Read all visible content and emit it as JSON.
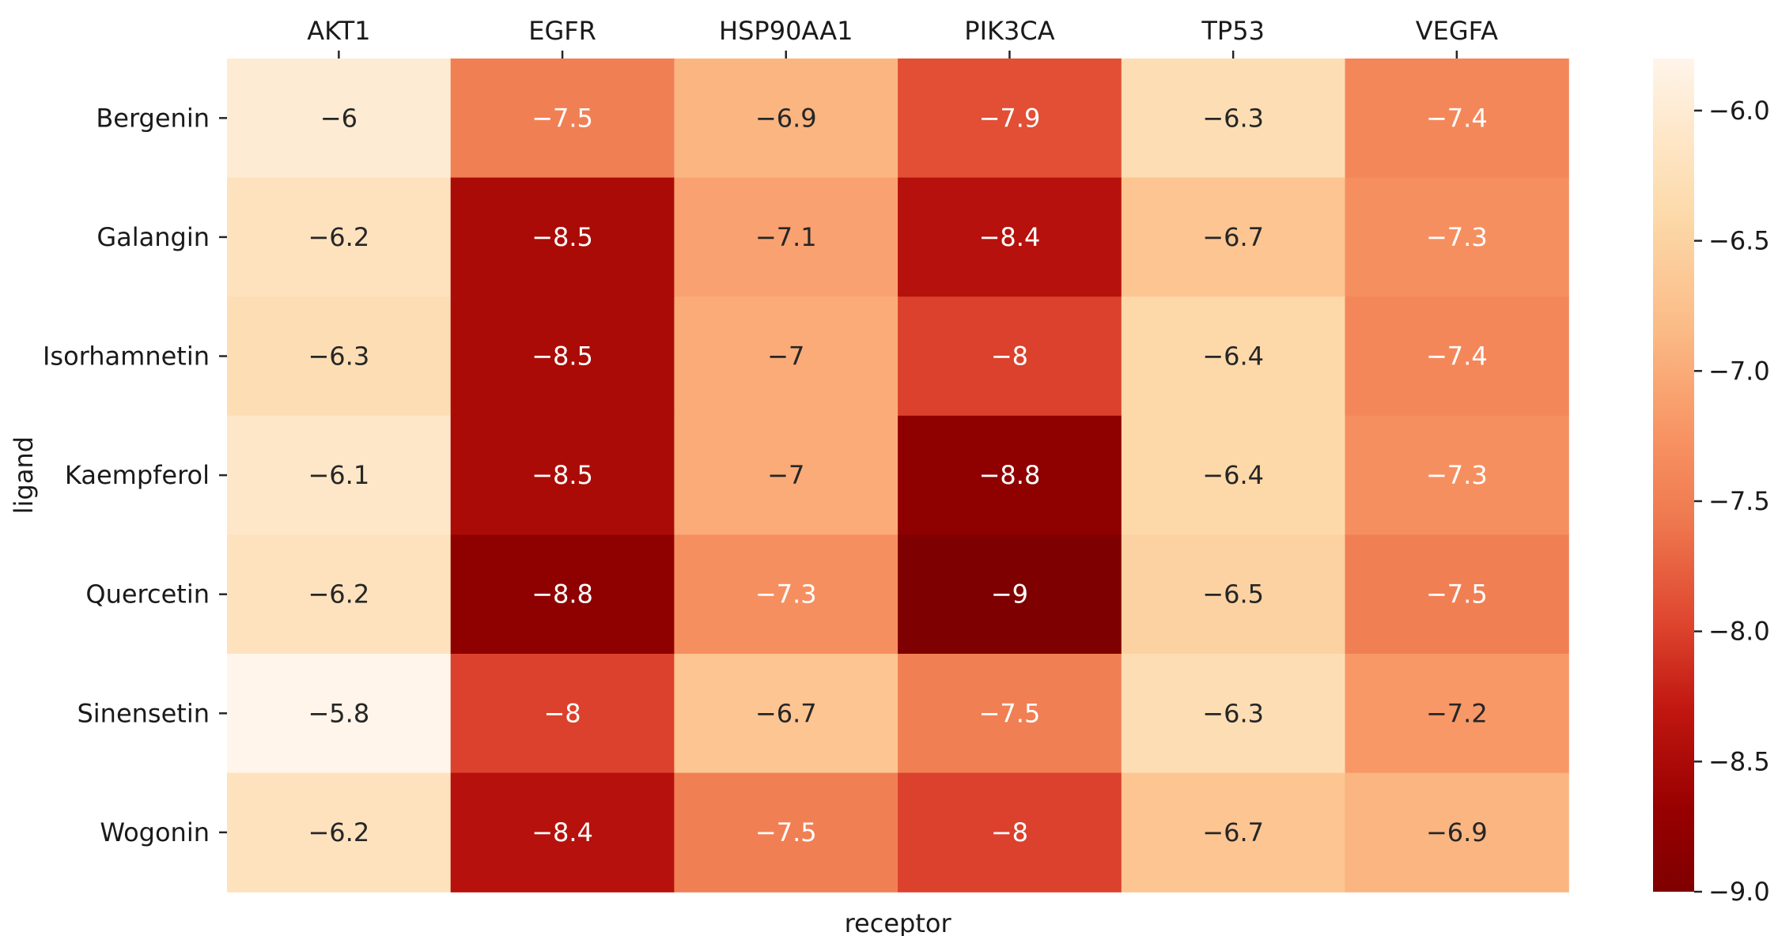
{
  "chart_data": {
    "type": "heatmap",
    "title": "",
    "xlabel": "receptor",
    "ylabel": "ligand",
    "columns": [
      "AKT1",
      "EGFR",
      "HSP90AA1",
      "PIK3CA",
      "TP53",
      "VEGFA"
    ],
    "rows": [
      "Bergenin",
      "Galangin",
      "Isorhamnetin",
      "Kaempferol",
      "Quercetin",
      "Sinensetin",
      "Wogonin"
    ],
    "values": [
      [
        -6,
        -7.5,
        -6.9,
        -7.9,
        -6.3,
        -7.4
      ],
      [
        -6.2,
        -8.5,
        -7.1,
        -8.4,
        -6.7,
        -7.3
      ],
      [
        -6.3,
        -8.5,
        -7,
        -8,
        -6.4,
        -7.4
      ],
      [
        -6.1,
        -8.5,
        -7,
        -8.8,
        -6.4,
        -7.3
      ],
      [
        -6.2,
        -8.8,
        -7.3,
        -9,
        -6.5,
        -7.5
      ],
      [
        -5.8,
        -8,
        -6.7,
        -7.5,
        -6.3,
        -7.2
      ],
      [
        -6.2,
        -8.4,
        -7.5,
        -8,
        -6.7,
        -6.9
      ]
    ],
    "colormap": "Oranges-Reds (dark red = low, cream = high)",
    "colorbar": {
      "range": [
        -9.0,
        -5.8
      ],
      "ticks": [
        -6.0,
        -6.5,
        -7.0,
        -7.5,
        -8.0,
        -8.5,
        -9.0
      ],
      "tick_labels": [
        "−6.0",
        "−6.5",
        "−7.0",
        "−7.5",
        "−8.0",
        "−8.5",
        "−9.0"
      ]
    },
    "x_axis_position": "top",
    "colorbar_position": "right",
    "grid": false
  }
}
